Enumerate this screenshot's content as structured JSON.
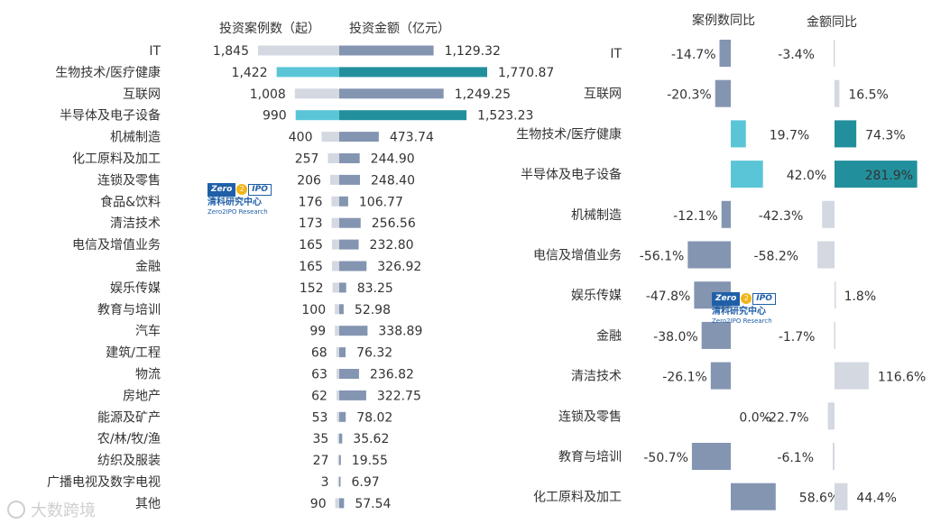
{
  "chart_data": [
    {
      "type": "bar",
      "title": "",
      "subtitle_left": "投资案例数（起）",
      "subtitle_right": "投资金额（亿元）",
      "categories": [
        "IT",
        "生物技术/医疗健康",
        "互联网",
        "半导体及电子设备",
        "机械制造",
        "化工原料及加工",
        "连锁及零售",
        "食品&饮料",
        "清洁技术",
        "电信及增值业务",
        "金融",
        "娱乐传媒",
        "教育与培训",
        "汽车",
        "建筑/工程",
        "物流",
        "房地产",
        "能源及矿产",
        "农/林/牧/渔",
        "纺织及服装",
        "广播电视及数字电视",
        "其他"
      ],
      "series": [
        {
          "name": "投资案例数（起）",
          "values": [
            1845,
            1422,
            1008,
            990,
            400,
            257,
            206,
            176,
            173,
            165,
            165,
            152,
            100,
            99,
            68,
            63,
            62,
            53,
            35,
            27,
            3,
            90
          ],
          "labels": [
            "1,845",
            "1,422",
            "1,008",
            "990",
            "400",
            "257",
            "206",
            "176",
            "173",
            "165",
            "165",
            "152",
            "100",
            "99",
            "68",
            "63",
            "62",
            "53",
            "35",
            "27",
            "3",
            "90"
          ]
        },
        {
          "name": "投资金额（亿元）",
          "values": [
            1129.32,
            1770.87,
            1249.25,
            1523.23,
            473.74,
            244.9,
            248.4,
            106.77,
            256.56,
            232.8,
            326.92,
            83.25,
            52.98,
            338.89,
            76.32,
            236.82,
            322.75,
            78.02,
            35.62,
            19.55,
            6.97,
            57.54
          ],
          "labels": [
            "1,129.32",
            "1,770.87",
            "1,249.25",
            "1,523.23",
            "473.74",
            "244.90",
            "248.40",
            "106.77",
            "256.56",
            "232.80",
            "326.92",
            "83.25",
            "52.98",
            "338.89",
            "76.32",
            "236.82",
            "322.75",
            "78.02",
            "35.62",
            "19.55",
            "6.97",
            "57.54"
          ]
        }
      ],
      "highlight_categories": [
        "生物技术/医疗健康",
        "半导体及电子设备"
      ]
    },
    {
      "type": "bar",
      "title": "",
      "subtitle_left": "案例数同比",
      "subtitle_right": "金额同比",
      "categories": [
        "IT",
        "互联网",
        "生物技术/医疗健康",
        "半导体及电子设备",
        "机械制造",
        "电信及增值业务",
        "娱乐传媒",
        "金融",
        "清洁技术",
        "连锁及零售",
        "教育与培训",
        "化工原料及加工"
      ],
      "series": [
        {
          "name": "案例数同比",
          "unit": "%",
          "values": [
            -14.7,
            -20.3,
            19.7,
            42.0,
            -12.1,
            -56.1,
            -47.8,
            -38.0,
            -26.1,
            0.0,
            -50.7,
            58.6
          ],
          "labels": [
            "-14.7%",
            "-20.3%",
            "19.7%",
            "42.0%",
            "-12.1%",
            "-56.1%",
            "-47.8%",
            "-38.0%",
            "-26.1%",
            "0.0%",
            "-50.7%",
            "58.6%"
          ]
        },
        {
          "name": "金额同比",
          "unit": "%",
          "values": [
            -3.4,
            16.5,
            74.3,
            281.9,
            -42.3,
            -58.2,
            1.8,
            -1.7,
            116.6,
            -22.7,
            -6.1,
            44.4
          ],
          "labels": [
            "-3.4%",
            "16.5%",
            "74.3%",
            "281.9%",
            "-42.3%",
            "-58.2%",
            "1.8%",
            "-1.7%",
            "116.6%",
            "-22.7%",
            "-6.1%",
            "44.4%"
          ]
        }
      ],
      "highlight_categories": [
        "生物技术/医疗健康",
        "半导体及电子设备"
      ]
    }
  ],
  "logo": {
    "mark_left": "Zero",
    "mark_mid": "2",
    "mark_right": "IPO",
    "name_cn": "清科研究中心",
    "name_en": "Zero2IPO Research"
  },
  "watermark": {
    "text": "大数跨境"
  },
  "colors": {
    "count_normal": "#d3d8e1",
    "count_highlight": "#5bc5d8",
    "amount_normal": "#8495b2",
    "amount_highlight": "#22909c",
    "yoy_count_neg": "#8495b2",
    "yoy_count_pos_highlight": "#5bc5d8",
    "yoy_amount_pos": "#d3d8e1",
    "yoy_amount_highlight": "#22909c"
  }
}
